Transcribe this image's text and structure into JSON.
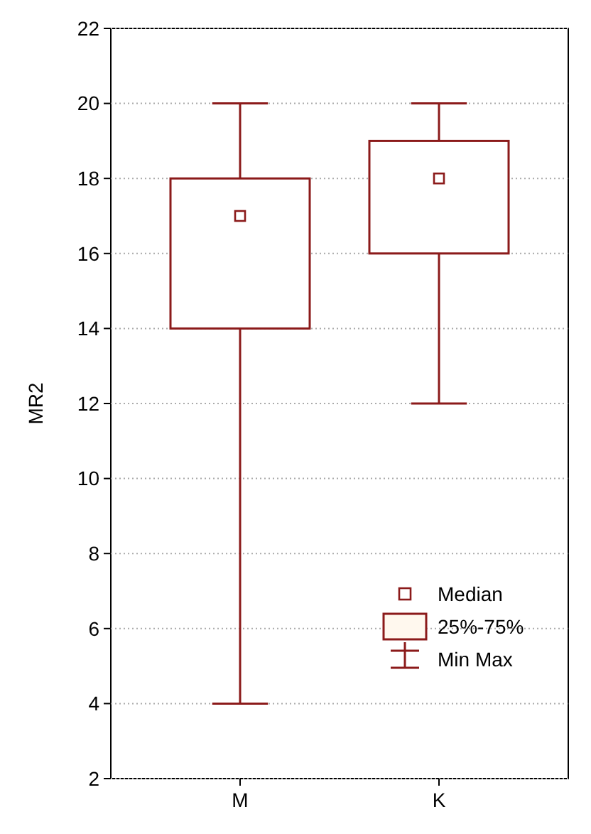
{
  "chart_data": {
    "type": "box",
    "ylabel": "MR2",
    "categories": [
      "M",
      "K"
    ],
    "series": [
      {
        "color": "#8b1a1a",
        "boxes": [
          {
            "low": 4,
            "q1": 14,
            "median": 17,
            "q3": 18,
            "high": 20
          },
          {
            "low": 12,
            "q1": 16,
            "median": 18,
            "q3": 19,
            "high": 20
          }
        ]
      }
    ],
    "ylim": [
      2,
      22
    ],
    "yticks": [
      2,
      4,
      6,
      8,
      10,
      12,
      14,
      16,
      18,
      20,
      22
    ],
    "grid": "y",
    "annotations": [
      "Median",
      "25%-75%",
      "Min Max"
    ]
  }
}
